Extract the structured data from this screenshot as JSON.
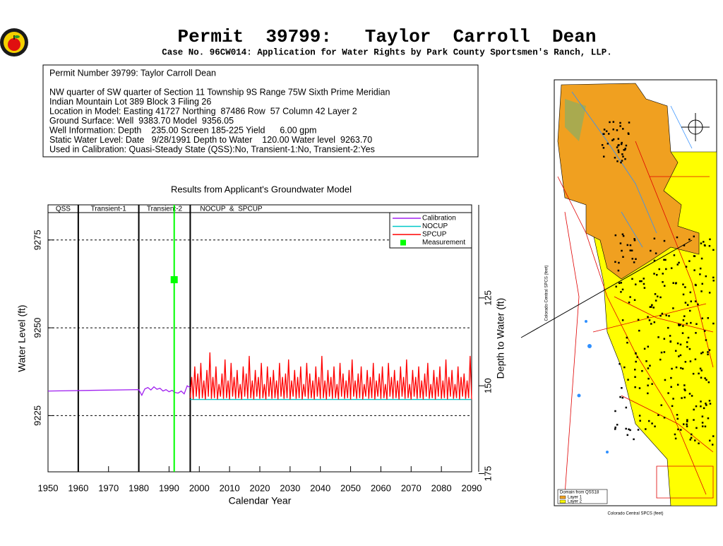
{
  "header": {
    "title": "Permit  39799:   Taylor  Carroll  Dean",
    "subtitle": "Case No. 96CW014: Application for Water Rights by Park County Sportsmen's Ranch, LLP."
  },
  "info": {
    "lines": [
      "Permit Number 39799: Taylor Carroll Dean",
      "NW quarter of SW quarter of Section 11 Township 9S Range 75W Sixth Prime Meridian",
      "Indian Mountain Lot 389 Block 3 Filing 26",
      "Location in Model: Easting 41727 Northing  87486 Row  57 Column 42 Layer 2",
      "Ground Surface: Well  9383.70 Model  9356.05",
      "Well Information: Depth    235.00 Screen 185-225 Yield      6.00 gpm",
      "Static Water Level: Date   9/28/1991 Depth to Water    120.00 Water level  9263.70",
      "Used in Calibration: Quasi-Steady State (QSS):No, Transient-1:No, Transient-2:Yes"
    ]
  },
  "chart_data": {
    "type": "line",
    "title": "Results from Applicant's Groundwater Model",
    "x_label": "Calendar Year",
    "y_label": "Water Level (ft)",
    "y2_label": "Depth to Water (ft)",
    "xlim": [
      1950,
      2090
    ],
    "xticks": [
      1950,
      1960,
      1970,
      1980,
      1990,
      2000,
      2010,
      2020,
      2030,
      2040,
      2050,
      2060,
      2070,
      2080,
      2090
    ],
    "ylim": [
      9209,
      9285
    ],
    "yticks": [
      9225,
      9250,
      9275
    ],
    "y2lim": [
      174.5,
      98.5
    ],
    "y2ticks": [
      125,
      150,
      175
    ],
    "grid": true,
    "legend": "upper right",
    "periods": [
      {
        "label": "QSS",
        "start": 1950,
        "end": 1960
      },
      {
        "label": "Transient-1",
        "start": 1960,
        "end": 1980
      },
      {
        "label": "Transient-2",
        "start": 1980,
        "end": 1997
      },
      {
        "label": "NOCUP  &  SPCUP",
        "start": 1997,
        "end": 2090
      }
    ],
    "series": [
      {
        "name": "Calibration",
        "color": "#a020f0",
        "x": [
          1950,
          1980,
          1981,
          1982,
          1983,
          1984,
          1985,
          1986,
          1987,
          1988,
          1989,
          1990,
          1991,
          1992,
          1993,
          1994,
          1995,
          1996,
          1997
        ],
        "values": [
          9232,
          9232.4,
          9230.8,
          9232.6,
          9233,
          9232.3,
          9233.2,
          9232.5,
          9232.8,
          9232,
          9232.4,
          9231.8,
          9232.2,
          9231.6,
          9231.4,
          9232,
          9231.2,
          9233.5,
          9233
        ]
      },
      {
        "name": "NOCUP",
        "color": "#00c8c8",
        "x": [
          1997,
          2090
        ],
        "values": [
          9229.6,
          9229.6
        ]
      },
      {
        "name": "SPCUP",
        "color": "#ff0000",
        "x": [
          1997,
          1997.5,
          1998,
          1998.5,
          1999,
          1999.5,
          2000,
          2000.5,
          2001,
          2001.5,
          2002,
          2002.5,
          2003,
          2003.5,
          2004,
          2004.5,
          2005,
          2005.5,
          2006,
          2006.5,
          2007,
          2007.5,
          2008,
          2008.5,
          2009,
          2009.5,
          2010,
          2010.5,
          2011,
          2011.5,
          2012,
          2012.5,
          2013,
          2013.5,
          2014,
          2014.5,
          2015,
          2015.5,
          2016,
          2016.5,
          2017,
          2017.5,
          2018,
          2018.5,
          2019,
          2019.5,
          2020,
          2020.5,
          2021,
          2021.5,
          2022,
          2022.5,
          2023,
          2023.5,
          2024,
          2024.5,
          2025,
          2025.5,
          2026,
          2026.5,
          2027,
          2027.5,
          2028,
          2028.5,
          2029,
          2029.5,
          2030,
          2030.5,
          2031,
          2031.5,
          2032,
          2032.5,
          2033,
          2033.5,
          2034,
          2034.5,
          2035,
          2035.5,
          2036,
          2036.5,
          2037,
          2037.5,
          2038,
          2038.5,
          2039,
          2039.5,
          2040,
          2040.5,
          2041,
          2041.5,
          2042,
          2042.5,
          2043,
          2043.5,
          2044,
          2044.5,
          2045,
          2045.5,
          2046,
          2046.5,
          2047,
          2047.5,
          2048,
          2048.5,
          2049,
          2049.5,
          2050,
          2050.5,
          2051,
          2051.5,
          2052,
          2052.5,
          2053,
          2053.5,
          2054,
          2054.5,
          2055,
          2055.5,
          2056,
          2056.5,
          2057,
          2057.5,
          2058,
          2058.5,
          2059,
          2059.5,
          2060,
          2060.5,
          2061,
          2061.5,
          2062,
          2062.5,
          2063,
          2063.5,
          2064,
          2064.5,
          2065,
          2065.5,
          2066,
          2066.5,
          2067,
          2067.5,
          2068,
          2068.5,
          2069,
          2069.5,
          2070,
          2070.5,
          2071,
          2071.5,
          2072,
          2072.5,
          2073,
          2073.5,
          2074,
          2074.5,
          2075,
          2075.5,
          2076,
          2076.5,
          2077,
          2077.5,
          2078,
          2078.5,
          2079,
          2079.5,
          2080,
          2080.5,
          2081,
          2081.5,
          2082,
          2082.5,
          2083,
          2083.5,
          2084,
          2084.5,
          2085,
          2085.5,
          2086,
          2086.5,
          2087,
          2087.5,
          2088,
          2088.5,
          2089,
          2089.5,
          2090
        ],
        "values": [
          9230,
          9236,
          9229.6,
          9239,
          9230.4,
          9237,
          9229.8,
          9240,
          9230,
          9235,
          9229.6,
          9238,
          9230.4,
          9243,
          9229.8,
          9236,
          9230,
          9239,
          9229.6,
          9234,
          9230.4,
          9237,
          9229.8,
          9241,
          9230,
          9235,
          9229.6,
          9240,
          9230.4,
          9236,
          9229.8,
          9238,
          9230,
          9234,
          9229.6,
          9239,
          9230.4,
          9237,
          9229.8,
          9242,
          9230,
          9235,
          9229.6,
          9238,
          9230.4,
          9236,
          9229.8,
          9240,
          9230,
          9234,
          9229.6,
          9239,
          9230.4,
          9236,
          9229.8,
          9238,
          9230,
          9235,
          9229.6,
          9240,
          9230.4,
          9236,
          9229.8,
          9237,
          9230,
          9241,
          9229.6,
          9235,
          9230.4,
          9238,
          9229.8,
          9236,
          9230,
          9239,
          9229.6,
          9234,
          9230.4,
          9240,
          9229.8,
          9237,
          9230,
          9235,
          9229.6,
          9239,
          9230.4,
          9236,
          9229.8,
          9242,
          9230,
          9235,
          9229.6,
          9238,
          9230.4,
          9236,
          9229.8,
          9239,
          9230,
          9234,
          9229.6,
          9240,
          9230.4,
          9237,
          9229.8,
          9235,
          9230,
          9238,
          9229.6,
          9241,
          9230.4,
          9235,
          9229.8,
          9237,
          9230,
          9239,
          9229.6,
          9234,
          9230.4,
          9238,
          9229.8,
          9236,
          9230,
          9240,
          9229.6,
          9235,
          9230.4,
          9237,
          9229.8,
          9239,
          9230,
          9234,
          9229.6,
          9240,
          9230.4,
          9236,
          9229.8,
          9238,
          9230,
          9235,
          9229.6,
          9239,
          9230.4,
          9236,
          9229.8,
          9241,
          9230,
          9234,
          9229.6,
          9238,
          9230.4,
          9236,
          9229.8,
          9239,
          9230,
          9235,
          9229.6,
          9237,
          9230.4,
          9240,
          9229.8,
          9234,
          9230,
          9238,
          9229.6,
          9236,
          9230.4,
          9239,
          9229.8,
          9235,
          9230,
          9241,
          9229.6,
          9236,
          9230.4,
          9238,
          9229.8,
          9234,
          9230,
          9239,
          9229.6,
          9236,
          9230.4,
          9237,
          9229.8,
          9235,
          9230,
          9242,
          9229.6
        ]
      },
      {
        "name": "Measurement",
        "color": "#00ff00",
        "marker": "square",
        "x": [
          1991.7
        ],
        "values": [
          9263.7
        ]
      }
    ]
  },
  "map": {
    "legend_title": "Domain from QSS18",
    "legend": [
      "Layer 1",
      "Layer 2"
    ],
    "x_label": "Colorado Central SPCS (feet)",
    "y_label": "Colorado Central SPCS (feet)"
  }
}
